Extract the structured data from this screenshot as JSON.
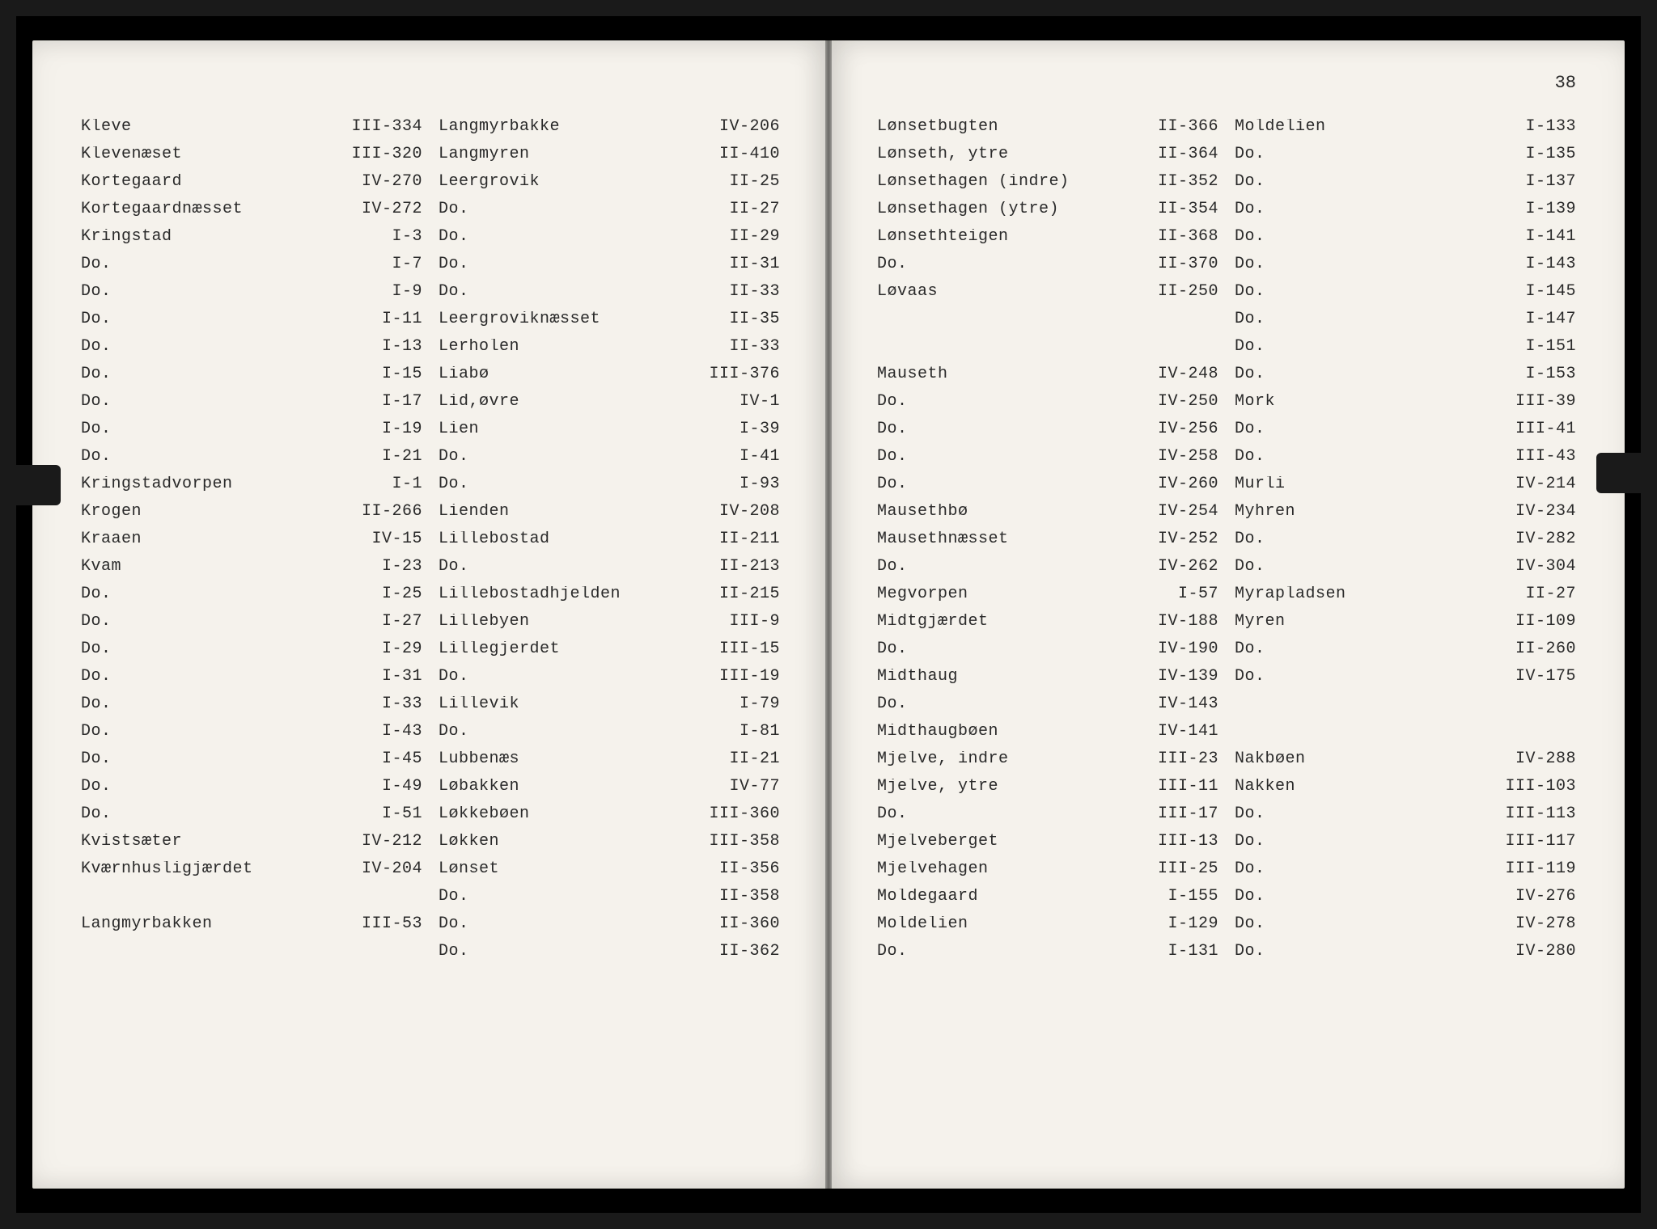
{
  "pageNumber": "38",
  "leftPage": {
    "colA": [
      {
        "name": "Kleve",
        "ref": "III-334"
      },
      {
        "name": "Klevenæset",
        "ref": "III-320"
      },
      {
        "name": "Kortegaard",
        "ref": "IV-270"
      },
      {
        "name": "Kortegaardnæsset",
        "ref": "IV-272"
      },
      {
        "name": "Kringstad",
        "ref": "I-3"
      },
      {
        "name": "Do.",
        "ref": "I-7"
      },
      {
        "name": "Do.",
        "ref": "I-9"
      },
      {
        "name": "Do.",
        "ref": "I-11"
      },
      {
        "name": "Do.",
        "ref": "I-13"
      },
      {
        "name": "Do.",
        "ref": "I-15"
      },
      {
        "name": "Do.",
        "ref": "I-17"
      },
      {
        "name": "Do.",
        "ref": "I-19"
      },
      {
        "name": "Do.",
        "ref": "I-21"
      },
      {
        "name": "Kringstadvorpen",
        "ref": "I-1"
      },
      {
        "name": "Krogen",
        "ref": "II-266"
      },
      {
        "name": "Kraaen",
        "ref": "IV-15"
      },
      {
        "name": "Kvam",
        "ref": "I-23"
      },
      {
        "name": "Do.",
        "ref": "I-25"
      },
      {
        "name": "Do.",
        "ref": "I-27"
      },
      {
        "name": "Do.",
        "ref": "I-29"
      },
      {
        "name": "Do.",
        "ref": "I-31"
      },
      {
        "name": "Do.",
        "ref": "I-33"
      },
      {
        "name": "Do.",
        "ref": "I-43"
      },
      {
        "name": "Do.",
        "ref": "I-45"
      },
      {
        "name": "Do.",
        "ref": "I-49"
      },
      {
        "name": "Do.",
        "ref": "I-51"
      },
      {
        "name": "Kvistsæter",
        "ref": "IV-212"
      },
      {
        "name": "Kværnhusligjærdet",
        "ref": "IV-204"
      },
      {
        "name": "",
        "ref": ""
      },
      {
        "name": "Langmyrbakken",
        "ref": "III-53"
      }
    ],
    "colB": [
      {
        "name": "Langmyrbakke",
        "ref": "IV-206"
      },
      {
        "name": "Langmyren",
        "ref": "II-410"
      },
      {
        "name": "Leergrovik",
        "ref": "II-25"
      },
      {
        "name": "Do.",
        "ref": "II-27"
      },
      {
        "name": "Do.",
        "ref": "II-29"
      },
      {
        "name": "Do.",
        "ref": "II-31"
      },
      {
        "name": "Do.",
        "ref": "II-33"
      },
      {
        "name": "Leergroviknæsset",
        "ref": "II-35"
      },
      {
        "name": "Lerholen",
        "ref": "II-33"
      },
      {
        "name": "Liabø",
        "ref": "III-376"
      },
      {
        "name": "Lid,øvre",
        "ref": "IV-1"
      },
      {
        "name": "Lien",
        "ref": "I-39"
      },
      {
        "name": "Do.",
        "ref": "I-41"
      },
      {
        "name": "Do.",
        "ref": "I-93"
      },
      {
        "name": "Lienden",
        "ref": "IV-208"
      },
      {
        "name": "Lillebostad",
        "ref": "II-211"
      },
      {
        "name": "Do.",
        "ref": "II-213"
      },
      {
        "name": "Lillebostadhjelden",
        "ref": "II-215"
      },
      {
        "name": "Lillebyen",
        "ref": "III-9"
      },
      {
        "name": "Lillegjerdet",
        "ref": "III-15"
      },
      {
        "name": "Do.",
        "ref": "III-19"
      },
      {
        "name": "Lillevik",
        "ref": "I-79"
      },
      {
        "name": "Do.",
        "ref": "I-81"
      },
      {
        "name": "Lubbenæs",
        "ref": "II-21"
      },
      {
        "name": "Løbakken",
        "ref": "IV-77"
      },
      {
        "name": "Løkkebøen",
        "ref": "III-360"
      },
      {
        "name": "Løkken",
        "ref": "III-358"
      },
      {
        "name": "Lønset",
        "ref": "II-356"
      },
      {
        "name": "Do.",
        "ref": "II-358"
      },
      {
        "name": "Do.",
        "ref": "II-360"
      },
      {
        "name": "Do.",
        "ref": "II-362"
      }
    ]
  },
  "rightPage": {
    "colA": [
      {
        "name": "Lønsetbugten",
        "ref": "II-366"
      },
      {
        "name": "Lønseth, ytre",
        "ref": "II-364"
      },
      {
        "name": "Lønsethagen (indre)",
        "ref": "II-352"
      },
      {
        "name": "Lønsethagen (ytre)",
        "ref": "II-354"
      },
      {
        "name": "Lønsethteigen",
        "ref": "II-368"
      },
      {
        "name": "Do.",
        "ref": "II-370"
      },
      {
        "name": "Løvaas",
        "ref": "II-250"
      },
      {
        "name": "",
        "ref": ""
      },
      {
        "name": "",
        "ref": ""
      },
      {
        "name": "Mauseth",
        "ref": "IV-248"
      },
      {
        "name": "Do.",
        "ref": "IV-250"
      },
      {
        "name": "Do.",
        "ref": "IV-256"
      },
      {
        "name": "Do.",
        "ref": "IV-258"
      },
      {
        "name": "Do.",
        "ref": "IV-260"
      },
      {
        "name": "Mausethbø",
        "ref": "IV-254"
      },
      {
        "name": "Mausethnæsset",
        "ref": "IV-252"
      },
      {
        "name": "Do.",
        "ref": "IV-262"
      },
      {
        "name": "Megvorpen",
        "ref": "I-57"
      },
      {
        "name": "Midtgjærdet",
        "ref": "IV-188"
      },
      {
        "name": "Do.",
        "ref": "IV-190"
      },
      {
        "name": "Midthaug",
        "ref": "IV-139"
      },
      {
        "name": "Do.",
        "ref": "IV-143"
      },
      {
        "name": "Midthaugbøen",
        "ref": "IV-141"
      },
      {
        "name": "Mjelve, indre",
        "ref": "III-23"
      },
      {
        "name": "Mjelve, ytre",
        "ref": "III-11"
      },
      {
        "name": "Do.",
        "ref": "III-17"
      },
      {
        "name": "Mjelveberget",
        "ref": "III-13"
      },
      {
        "name": "Mjelvehagen",
        "ref": "III-25"
      },
      {
        "name": "Moldegaard",
        "ref": "I-155"
      },
      {
        "name": "Moldelien",
        "ref": "I-129"
      },
      {
        "name": "Do.",
        "ref": "I-131"
      }
    ],
    "colB": [
      {
        "name": "Moldelien",
        "ref": "I-133"
      },
      {
        "name": "Do.",
        "ref": "I-135"
      },
      {
        "name": "Do.",
        "ref": "I-137"
      },
      {
        "name": "Do.",
        "ref": "I-139"
      },
      {
        "name": "Do.",
        "ref": "I-141"
      },
      {
        "name": "Do.",
        "ref": "I-143"
      },
      {
        "name": "Do.",
        "ref": "I-145"
      },
      {
        "name": "Do.",
        "ref": "I-147"
      },
      {
        "name": "Do.",
        "ref": "I-151"
      },
      {
        "name": "Do.",
        "ref": "I-153"
      },
      {
        "name": "Mork",
        "ref": "III-39"
      },
      {
        "name": "Do.",
        "ref": "III-41"
      },
      {
        "name": "Do.",
        "ref": "III-43"
      },
      {
        "name": "Murli",
        "ref": "IV-214"
      },
      {
        "name": "Myhren",
        "ref": "IV-234"
      },
      {
        "name": "Do.",
        "ref": "IV-282"
      },
      {
        "name": "Do.",
        "ref": "IV-304"
      },
      {
        "name": "Myrapladsen",
        "ref": "II-27"
      },
      {
        "name": "Myren",
        "ref": "II-109"
      },
      {
        "name": "Do.",
        "ref": "II-260"
      },
      {
        "name": "Do.",
        "ref": "IV-175"
      },
      {
        "name": "",
        "ref": ""
      },
      {
        "name": "",
        "ref": ""
      },
      {
        "name": "Nakbøen",
        "ref": "IV-288"
      },
      {
        "name": "Nakken",
        "ref": "III-103"
      },
      {
        "name": "Do.",
        "ref": "III-113"
      },
      {
        "name": "Do.",
        "ref": "III-117"
      },
      {
        "name": "Do.",
        "ref": "III-119"
      },
      {
        "name": "Do.",
        "ref": "IV-276"
      },
      {
        "name": "Do.",
        "ref": "IV-278"
      },
      {
        "name": "Do.",
        "ref": "IV-280"
      }
    ]
  }
}
